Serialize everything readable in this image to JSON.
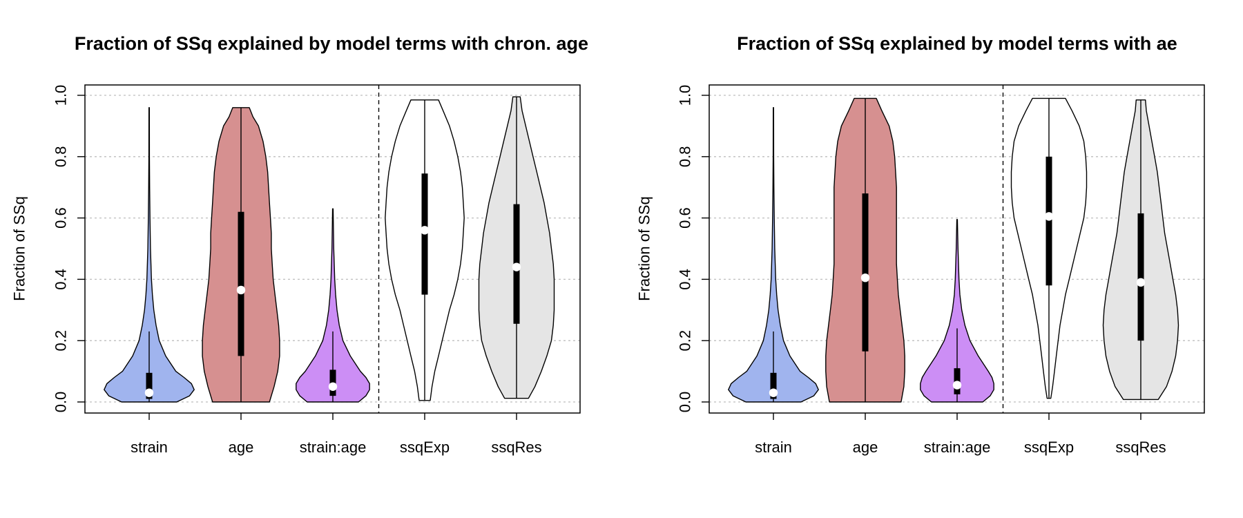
{
  "chart_data": [
    {
      "type": "violin",
      "title": "Fraction of SSq explained by model terms with chron. age",
      "ylabel": "Fraction of SSq",
      "xlabel": "",
      "ylim": [
        0,
        1
      ],
      "yticks": [
        "0.0",
        "0.2",
        "0.4",
        "0.6",
        "0.8",
        "1.0"
      ],
      "grid": "horizontal-dotted",
      "separator_after_category": 3,
      "categories": [
        "strain",
        "age",
        "strain:age",
        "ssqExp",
        "ssqRes"
      ],
      "series": [
        {
          "category": "strain",
          "color": "#a0b4ee",
          "min": 0.0,
          "max": 0.96,
          "q1": 0.01,
          "median": 0.03,
          "q3": 0.095,
          "whisker_low": 0.0,
          "whisker_high": 0.23,
          "density": [
            [
              0.0,
              0.3
            ],
            [
              0.02,
              0.44
            ],
            [
              0.04,
              0.49
            ],
            [
              0.06,
              0.46
            ],
            [
              0.08,
              0.38
            ],
            [
              0.1,
              0.29
            ],
            [
              0.15,
              0.18
            ],
            [
              0.2,
              0.11
            ],
            [
              0.25,
              0.075
            ],
            [
              0.3,
              0.05
            ],
            [
              0.35,
              0.035
            ],
            [
              0.4,
              0.025
            ],
            [
              0.5,
              0.014
            ],
            [
              0.6,
              0.009
            ],
            [
              0.7,
              0.005
            ],
            [
              0.8,
              0.003
            ],
            [
              0.96,
              0.002
            ]
          ]
        },
        {
          "category": "age",
          "color": "#d69090",
          "min": 0.0,
          "max": 0.96,
          "q1": 0.15,
          "median": 0.365,
          "q3": 0.62,
          "whisker_low": 0.0,
          "whisker_high": 0.96,
          "density": [
            [
              0.0,
              0.31
            ],
            [
              0.05,
              0.36
            ],
            [
              0.1,
              0.4
            ],
            [
              0.15,
              0.42
            ],
            [
              0.2,
              0.42
            ],
            [
              0.25,
              0.41
            ],
            [
              0.3,
              0.39
            ],
            [
              0.35,
              0.37
            ],
            [
              0.4,
              0.35
            ],
            [
              0.45,
              0.34
            ],
            [
              0.5,
              0.33
            ],
            [
              0.55,
              0.33
            ],
            [
              0.6,
              0.32
            ],
            [
              0.65,
              0.31
            ],
            [
              0.7,
              0.3
            ],
            [
              0.75,
              0.29
            ],
            [
              0.8,
              0.27
            ],
            [
              0.85,
              0.24
            ],
            [
              0.9,
              0.19
            ],
            [
              0.93,
              0.13
            ],
            [
              0.96,
              0.09
            ]
          ]
        },
        {
          "category": "strain:age",
          "color": "#cc8ef5",
          "min": 0.0,
          "max": 0.63,
          "q1": 0.02,
          "median": 0.05,
          "q3": 0.105,
          "whisker_low": 0.0,
          "whisker_high": 0.23,
          "density": [
            [
              0.0,
              0.28
            ],
            [
              0.02,
              0.36
            ],
            [
              0.04,
              0.4
            ],
            [
              0.06,
              0.4
            ],
            [
              0.08,
              0.36
            ],
            [
              0.1,
              0.3
            ],
            [
              0.15,
              0.19
            ],
            [
              0.2,
              0.11
            ],
            [
              0.25,
              0.07
            ],
            [
              0.3,
              0.045
            ],
            [
              0.35,
              0.03
            ],
            [
              0.4,
              0.02
            ],
            [
              0.5,
              0.01
            ],
            [
              0.63,
              0.003
            ]
          ]
        },
        {
          "category": "ssqExp",
          "color": "#ffffff",
          "min": 0.005,
          "max": 0.985,
          "q1": 0.35,
          "median": 0.56,
          "q3": 0.745,
          "whisker_low": 0.005,
          "whisker_high": 0.985,
          "density": [
            [
              0.005,
              0.06
            ],
            [
              0.05,
              0.08
            ],
            [
              0.1,
              0.11
            ],
            [
              0.15,
              0.15
            ],
            [
              0.2,
              0.19
            ],
            [
              0.25,
              0.23
            ],
            [
              0.3,
              0.27
            ],
            [
              0.35,
              0.32
            ],
            [
              0.4,
              0.36
            ],
            [
              0.45,
              0.39
            ],
            [
              0.5,
              0.41
            ],
            [
              0.55,
              0.42
            ],
            [
              0.6,
              0.43
            ],
            [
              0.65,
              0.42
            ],
            [
              0.7,
              0.41
            ],
            [
              0.75,
              0.39
            ],
            [
              0.8,
              0.36
            ],
            [
              0.85,
              0.32
            ],
            [
              0.9,
              0.27
            ],
            [
              0.95,
              0.2
            ],
            [
              0.985,
              0.15
            ]
          ]
        },
        {
          "category": "ssqRes",
          "color": "#e5e5e5",
          "min": 0.012,
          "max": 0.995,
          "q1": 0.255,
          "median": 0.44,
          "q3": 0.645,
          "whisker_low": 0.012,
          "whisker_high": 0.995,
          "density": [
            [
              0.012,
              0.13
            ],
            [
              0.05,
              0.2
            ],
            [
              0.1,
              0.27
            ],
            [
              0.15,
              0.33
            ],
            [
              0.2,
              0.38
            ],
            [
              0.25,
              0.4
            ],
            [
              0.3,
              0.41
            ],
            [
              0.35,
              0.41
            ],
            [
              0.4,
              0.41
            ],
            [
              0.45,
              0.4
            ],
            [
              0.5,
              0.38
            ],
            [
              0.55,
              0.36
            ],
            [
              0.6,
              0.33
            ],
            [
              0.65,
              0.3
            ],
            [
              0.7,
              0.26
            ],
            [
              0.75,
              0.22
            ],
            [
              0.8,
              0.18
            ],
            [
              0.85,
              0.14
            ],
            [
              0.9,
              0.1
            ],
            [
              0.95,
              0.06
            ],
            [
              0.995,
              0.04
            ]
          ]
        }
      ]
    },
    {
      "type": "violin",
      "title": "Fraction of SSq explained by model terms with ae",
      "ylabel": "Fraction of SSq",
      "xlabel": "",
      "ylim": [
        0,
        1
      ],
      "yticks": [
        "0.0",
        "0.2",
        "0.4",
        "0.6",
        "0.8",
        "1.0"
      ],
      "grid": "horizontal-dotted",
      "separator_after_category": 3,
      "categories": [
        "strain",
        "age",
        "strain:age",
        "ssqExp",
        "ssqRes"
      ],
      "series": [
        {
          "category": "strain",
          "color": "#a0b4ee",
          "min": 0.0,
          "max": 0.96,
          "q1": 0.01,
          "median": 0.03,
          "q3": 0.095,
          "whisker_low": 0.0,
          "whisker_high": 0.23,
          "density": [
            [
              0.0,
              0.3
            ],
            [
              0.02,
              0.44
            ],
            [
              0.04,
              0.49
            ],
            [
              0.06,
              0.46
            ],
            [
              0.08,
              0.38
            ],
            [
              0.1,
              0.29
            ],
            [
              0.15,
              0.18
            ],
            [
              0.2,
              0.11
            ],
            [
              0.25,
              0.075
            ],
            [
              0.3,
              0.05
            ],
            [
              0.35,
              0.035
            ],
            [
              0.4,
              0.025
            ],
            [
              0.5,
              0.014
            ],
            [
              0.6,
              0.009
            ],
            [
              0.7,
              0.005
            ],
            [
              0.8,
              0.003
            ],
            [
              0.96,
              0.002
            ]
          ]
        },
        {
          "category": "age",
          "color": "#d69090",
          "min": 0.0,
          "max": 0.99,
          "q1": 0.165,
          "median": 0.405,
          "q3": 0.68,
          "whisker_low": 0.0,
          "whisker_high": 0.99,
          "density": [
            [
              0.0,
              0.39
            ],
            [
              0.05,
              0.42
            ],
            [
              0.1,
              0.43
            ],
            [
              0.15,
              0.43
            ],
            [
              0.2,
              0.42
            ],
            [
              0.25,
              0.4
            ],
            [
              0.3,
              0.38
            ],
            [
              0.35,
              0.36
            ],
            [
              0.4,
              0.35
            ],
            [
              0.45,
              0.34
            ],
            [
              0.5,
              0.34
            ],
            [
              0.55,
              0.34
            ],
            [
              0.6,
              0.34
            ],
            [
              0.65,
              0.34
            ],
            [
              0.7,
              0.34
            ],
            [
              0.75,
              0.33
            ],
            [
              0.8,
              0.32
            ],
            [
              0.85,
              0.3
            ],
            [
              0.9,
              0.26
            ],
            [
              0.95,
              0.18
            ],
            [
              0.99,
              0.12
            ]
          ]
        },
        {
          "category": "strain:age",
          "color": "#cc8ef5",
          "min": 0.0,
          "max": 0.595,
          "q1": 0.025,
          "median": 0.055,
          "q3": 0.11,
          "whisker_low": 0.0,
          "whisker_high": 0.24,
          "density": [
            [
              0.0,
              0.28
            ],
            [
              0.02,
              0.36
            ],
            [
              0.04,
              0.4
            ],
            [
              0.06,
              0.4
            ],
            [
              0.08,
              0.38
            ],
            [
              0.1,
              0.34
            ],
            [
              0.15,
              0.23
            ],
            [
              0.2,
              0.14
            ],
            [
              0.25,
              0.085
            ],
            [
              0.3,
              0.05
            ],
            [
              0.35,
              0.03
            ],
            [
              0.4,
              0.02
            ],
            [
              0.5,
              0.01
            ],
            [
              0.595,
              0.003
            ]
          ]
        },
        {
          "category": "ssqExp",
          "color": "#ffffff",
          "min": 0.012,
          "max": 0.99,
          "q1": 0.38,
          "median": 0.605,
          "q3": 0.8,
          "whisker_low": 0.012,
          "whisker_high": 0.99,
          "density": [
            [
              0.012,
              0.02
            ],
            [
              0.05,
              0.04
            ],
            [
              0.1,
              0.06
            ],
            [
              0.15,
              0.08
            ],
            [
              0.2,
              0.1
            ],
            [
              0.25,
              0.12
            ],
            [
              0.3,
              0.15
            ],
            [
              0.35,
              0.18
            ],
            [
              0.4,
              0.22
            ],
            [
              0.45,
              0.26
            ],
            [
              0.5,
              0.3
            ],
            [
              0.55,
              0.34
            ],
            [
              0.6,
              0.38
            ],
            [
              0.65,
              0.4
            ],
            [
              0.7,
              0.41
            ],
            [
              0.75,
              0.41
            ],
            [
              0.8,
              0.4
            ],
            [
              0.85,
              0.38
            ],
            [
              0.9,
              0.33
            ],
            [
              0.95,
              0.25
            ],
            [
              0.99,
              0.18
            ]
          ]
        },
        {
          "category": "ssqRes",
          "color": "#e5e5e5",
          "min": 0.008,
          "max": 0.985,
          "q1": 0.2,
          "median": 0.39,
          "q3": 0.615,
          "whisker_low": 0.008,
          "whisker_high": 0.985,
          "density": [
            [
              0.008,
              0.19
            ],
            [
              0.05,
              0.28
            ],
            [
              0.1,
              0.34
            ],
            [
              0.15,
              0.38
            ],
            [
              0.2,
              0.4
            ],
            [
              0.25,
              0.41
            ],
            [
              0.3,
              0.4
            ],
            [
              0.35,
              0.38
            ],
            [
              0.4,
              0.35
            ],
            [
              0.45,
              0.32
            ],
            [
              0.5,
              0.29
            ],
            [
              0.55,
              0.26
            ],
            [
              0.6,
              0.24
            ],
            [
              0.65,
              0.22
            ],
            [
              0.7,
              0.2
            ],
            [
              0.75,
              0.18
            ],
            [
              0.8,
              0.15
            ],
            [
              0.85,
              0.12
            ],
            [
              0.9,
              0.09
            ],
            [
              0.95,
              0.06
            ],
            [
              0.985,
              0.05
            ]
          ]
        }
      ]
    }
  ]
}
